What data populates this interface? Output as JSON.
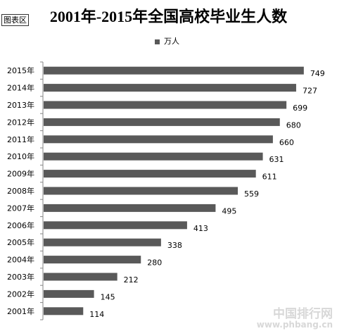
{
  "chart_area_label": "图表区",
  "watermark": {
    "line1": "中国排行网",
    "line2": "www.phbang.cn"
  },
  "chart_data": {
    "type": "bar",
    "orientation": "horizontal",
    "title": "2001年-2015年全国高校毕业生人数",
    "categories": [
      "2015年",
      "2014年",
      "2013年",
      "2012年",
      "2011年",
      "2010年",
      "2009年",
      "2008年",
      "2007年",
      "2006年",
      "2005年",
      "2004年",
      "2003年",
      "2002年",
      "2001年"
    ],
    "series": [
      {
        "name": "万人",
        "values": [
          749,
          727,
          699,
          680,
          660,
          631,
          611,
          559,
          495,
          413,
          338,
          280,
          212,
          145,
          114
        ],
        "color": "#595959"
      }
    ],
    "xlim": [
      0,
      800
    ],
    "grid": false,
    "legend_position": "top",
    "data_labels": true
  }
}
